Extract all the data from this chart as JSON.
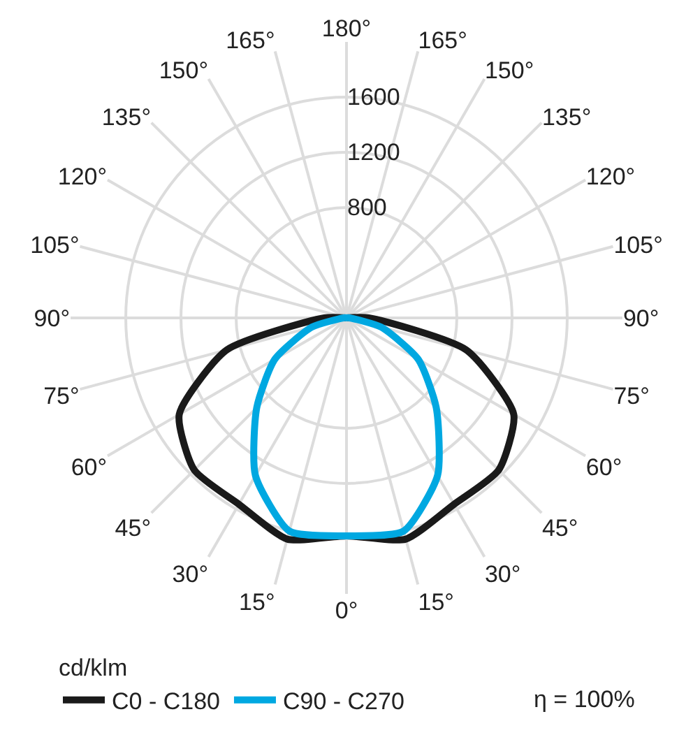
{
  "chart_data": {
    "type": "radar",
    "legend_title": "cd/klm",
    "legend": "bottom",
    "grid": true,
    "line_style": "solid",
    "marker": "none",
    "categories": [
      "180°",
      "165°",
      "150°",
      "135°",
      "120°",
      "105°",
      "90°",
      "75°",
      "60°",
      "45°",
      "30°",
      "15°",
      "0°",
      "15°",
      "30°",
      "45°",
      "60°",
      "75°",
      "90°",
      "105°",
      "120°",
      "135°",
      "150°",
      "165°"
    ],
    "ylim": [
      0,
      2000
    ],
    "yticks": [
      800,
      1200,
      1600
    ],
    "series": [
      {
        "name": "C0 - C180",
        "color": "#1a1a1a",
        "values": [
          0,
          0,
          0,
          0,
          0,
          0,
          160,
          900,
          1400,
          1560,
          1560,
          1660,
          1580,
          1660,
          1560,
          1560,
          1400,
          900,
          160,
          0,
          0,
          0,
          0,
          0
        ]
      },
      {
        "name": "C90 - C270",
        "color": "#00a8e1",
        "values": [
          0,
          0,
          0,
          0,
          0,
          0,
          20,
          260,
          600,
          920,
          1320,
          1600,
          1580,
          1600,
          1320,
          920,
          600,
          260,
          20,
          0,
          0,
          0,
          0,
          0
        ]
      }
    ],
    "annotations": [
      "η = 100%"
    ]
  }
}
